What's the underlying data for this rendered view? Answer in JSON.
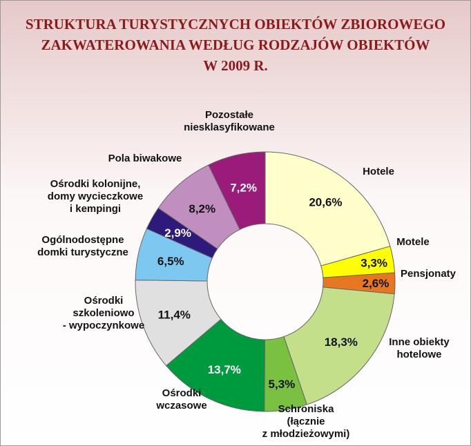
{
  "chart_data": {
    "type": "donut",
    "title": "STRUKTURA TURYSTYCZNYCH OBIEKTÓW ZBIOROWEGO\nZAKWATEROWANIA WEDŁUG RODZAJÓW OBIEKTÓW\nW 2009 R.",
    "categories": [
      "Hotele",
      "Motele",
      "Pensjonaty",
      "Inne obiekty\nhotelowe",
      "Schroniska\n(łącznie\nz młodzieżowymi)",
      "Ośrodki\nwczasowe",
      "Ośrodki\nszkoleniowo\n- wypoczynkowe",
      "Ogólnodostępne\ndomki turystyczne",
      "Ośrodki kolonijne,\ndomy wycieczkowe\ni kempingi",
      "Pola biwakowe",
      "Pozostałe\nniesklasyfikowane"
    ],
    "values": [
      20.6,
      3.3,
      2.6,
      18.3,
      5.3,
      13.7,
      11.4,
      6.5,
      2.9,
      8.2,
      7.2
    ],
    "value_labels": [
      "20,6%",
      "3,3%",
      "2,6%",
      "18,3%",
      "5,3%",
      "13,7%",
      "11,4%",
      "6,5%",
      "2,9%",
      "8,2%",
      "7,2%"
    ],
    "colors": [
      "#ffffcc",
      "#ffff00",
      "#e87722",
      "#c4df8a",
      "#7ac142",
      "#009a3e",
      "#e0e0e0",
      "#7cc8f0",
      "#2e1a7a",
      "#c08fc0",
      "#9b1b7a"
    ]
  }
}
